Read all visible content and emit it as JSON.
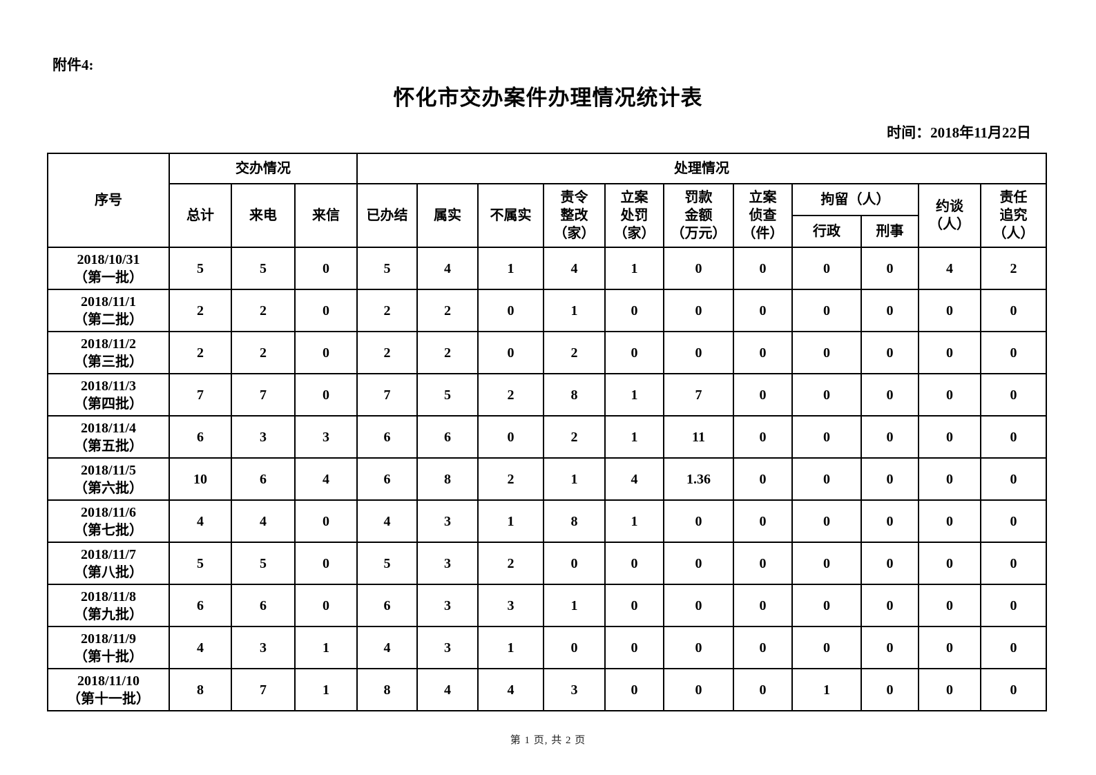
{
  "page": {
    "attachment_label": "附件4:",
    "title": "怀化市交办案件办理情况统计表",
    "date_line": "时间：2018年11月22日",
    "footer": "第 1 页, 共 2 页"
  },
  "colors": {
    "background": "#ffffff",
    "text": "#000000",
    "border": "#000000"
  },
  "table": {
    "header": {
      "serial": "序号",
      "group_assign": "交办情况",
      "group_handle": "处理情况",
      "assign_cols": [
        "总计",
        "来电",
        "来信"
      ],
      "handle_cols": [
        "已办结",
        "属实",
        "不属实",
        "责令\n整改\n（家）",
        "立案\n处罚\n（家）",
        "罚款\n金额\n（万元）",
        "立案\n侦查\n（件）"
      ],
      "detention_label": "拘留（人）",
      "detention_sub": [
        "行政",
        "刑事"
      ],
      "tail_cols": [
        "约谈\n（人）",
        "责任\n追究\n（人）"
      ]
    },
    "rows": [
      {
        "serial": "2018/10/31\n（第一批）",
        "values": [
          "5",
          "5",
          "0",
          "5",
          "4",
          "1",
          "4",
          "1",
          "0",
          "0",
          "0",
          "0",
          "4",
          "2"
        ]
      },
      {
        "serial": "2018/11/1\n（第二批）",
        "values": [
          "2",
          "2",
          "0",
          "2",
          "2",
          "0",
          "1",
          "0",
          "0",
          "0",
          "0",
          "0",
          "0",
          "0"
        ]
      },
      {
        "serial": "2018/11/2\n（第三批）",
        "values": [
          "2",
          "2",
          "0",
          "2",
          "2",
          "0",
          "2",
          "0",
          "0",
          "0",
          "0",
          "0",
          "0",
          "0"
        ]
      },
      {
        "serial": "2018/11/3\n（第四批）",
        "values": [
          "7",
          "7",
          "0",
          "7",
          "5",
          "2",
          "8",
          "1",
          "7",
          "0",
          "0",
          "0",
          "0",
          "0"
        ]
      },
      {
        "serial": "2018/11/4\n（第五批）",
        "values": [
          "6",
          "3",
          "3",
          "6",
          "6",
          "0",
          "2",
          "1",
          "11",
          "0",
          "0",
          "0",
          "0",
          "0"
        ]
      },
      {
        "serial": "2018/11/5\n（第六批）",
        "values": [
          "10",
          "6",
          "4",
          "6",
          "8",
          "2",
          "1",
          "4",
          "1.36",
          "0",
          "0",
          "0",
          "0",
          "0"
        ]
      },
      {
        "serial": "2018/11/6\n（第七批）",
        "values": [
          "4",
          "4",
          "0",
          "4",
          "3",
          "1",
          "8",
          "1",
          "0",
          "0",
          "0",
          "0",
          "0",
          "0"
        ]
      },
      {
        "serial": "2018/11/7\n（第八批）",
        "values": [
          "5",
          "5",
          "0",
          "5",
          "3",
          "2",
          "0",
          "0",
          "0",
          "0",
          "0",
          "0",
          "0",
          "0"
        ]
      },
      {
        "serial": "2018/11/8\n（第九批）",
        "values": [
          "6",
          "6",
          "0",
          "6",
          "3",
          "3",
          "1",
          "0",
          "0",
          "0",
          "0",
          "0",
          "0",
          "0"
        ]
      },
      {
        "serial": "2018/11/9\n（第十批）",
        "values": [
          "4",
          "3",
          "1",
          "4",
          "3",
          "1",
          "0",
          "0",
          "0",
          "0",
          "0",
          "0",
          "0",
          "0"
        ]
      },
      {
        "serial": "2018/11/10\n（第十一批）",
        "values": [
          "8",
          "7",
          "1",
          "8",
          "4",
          "4",
          "3",
          "0",
          "0",
          "0",
          "1",
          "0",
          "0",
          "0"
        ]
      }
    ]
  }
}
